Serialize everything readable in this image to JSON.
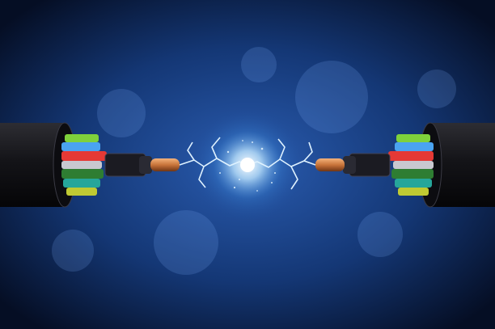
{
  "scene": {
    "description_tag": "fiber-optic-cables-electric-spark",
    "colors": {
      "background_center": "#1f4f9e",
      "background_edge": "#06112a",
      "cable_jacket": "#1a1a1f",
      "copper": "#c8743a",
      "spark": "#bfe6ff",
      "fiber_colors": [
        "#7fd13b",
        "#4aa3f0",
        "#e53935",
        "#2e7d32",
        "#26a69a",
        "#c0ca33"
      ]
    }
  }
}
